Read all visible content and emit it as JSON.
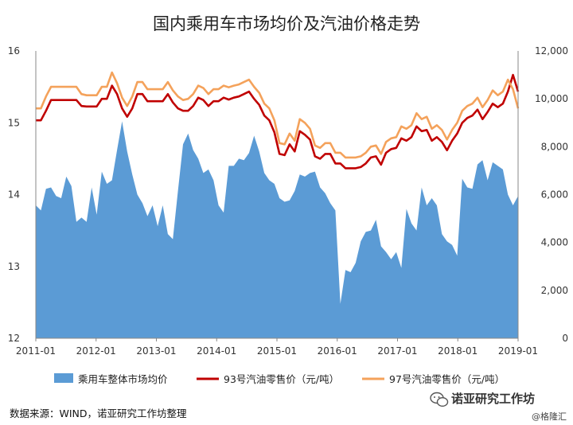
{
  "chart_data": {
    "type": "area",
    "title": "国内乘用车市场均价及汽油价格走势",
    "x_ticks": [
      "2011-01",
      "2012-01",
      "2013-01",
      "2014-01",
      "2015-01",
      "2016-01",
      "2017-01",
      "2018-01",
      "2019-01"
    ],
    "y_left": {
      "min": 12,
      "max": 16,
      "ticks": [
        "12",
        "13",
        "14",
        "15",
        "16"
      ]
    },
    "y_right": {
      "min": 0,
      "max": 12000,
      "ticks": [
        "0",
        "2,000",
        "4,000",
        "6,000",
        "8,000",
        "10,000",
        "12,000"
      ]
    },
    "x_range": [
      "2011-01",
      "2019-01"
    ],
    "series": [
      {
        "name": "乘用车整体市场均价",
        "type": "area",
        "axis": "left",
        "color": "#5b9bd5",
        "values": [
          13.85,
          13.78,
          14.08,
          14.1,
          13.98,
          13.95,
          14.25,
          14.12,
          13.62,
          13.68,
          13.62,
          14.1,
          13.72,
          14.32,
          14.15,
          14.2,
          14.62,
          15.02,
          14.6,
          14.28,
          14.0,
          13.88,
          13.7,
          13.85,
          13.56,
          13.85,
          13.45,
          13.38,
          14.05,
          14.7,
          14.85,
          14.62,
          14.5,
          14.3,
          14.35,
          14.2,
          13.85,
          13.75,
          14.4,
          14.4,
          14.5,
          14.48,
          14.58,
          14.82,
          14.6,
          14.3,
          14.2,
          14.15,
          13.95,
          13.9,
          13.92,
          14.05,
          14.28,
          14.25,
          14.3,
          14.32,
          14.1,
          14.02,
          13.88,
          13.78,
          12.48,
          12.95,
          12.92,
          13.05,
          13.35,
          13.48,
          13.5,
          13.65,
          13.28,
          13.2,
          13.1,
          13.2,
          12.98,
          13.8,
          13.6,
          13.5,
          14.1,
          13.85,
          13.95,
          13.85,
          13.45,
          13.35,
          13.3,
          13.15,
          14.22,
          14.1,
          14.08,
          14.42,
          14.48,
          14.2,
          14.45,
          14.4,
          14.35,
          14.0,
          13.85,
          13.98
        ]
      },
      {
        "name": "93号汽油零售价（元/吨）",
        "type": "line",
        "axis": "right",
        "color": "#c00000",
        "values": [
          9100,
          9100,
          9500,
          9950,
          9950,
          9950,
          9950,
          9950,
          9950,
          9700,
          9680,
          9680,
          9680,
          10000,
          10000,
          10550,
          10200,
          9600,
          9250,
          9600,
          10200,
          10200,
          9900,
          9900,
          9900,
          9900,
          10200,
          9850,
          9600,
          9500,
          9500,
          9700,
          10050,
          9950,
          9700,
          9900,
          9900,
          10050,
          9970,
          10050,
          10100,
          10200,
          10300,
          10000,
          9750,
          9300,
          9100,
          8600,
          7700,
          7650,
          8100,
          7800,
          8650,
          8500,
          8300,
          7600,
          7500,
          7700,
          7700,
          7300,
          7300,
          7100,
          7100,
          7100,
          7150,
          7300,
          7550,
          7600,
          7250,
          7750,
          7900,
          7950,
          8350,
          8250,
          8400,
          8850,
          8650,
          8700,
          8250,
          8400,
          8200,
          7850,
          8250,
          8550,
          9000,
          9200,
          9300,
          9550,
          9150,
          9450,
          9800,
          9650,
          9800,
          10300,
          11000,
          10300
        ]
      },
      {
        "name": "97号汽油零售价（元/吨）",
        "type": "line",
        "axis": "right",
        "color": "#f4a25b",
        "values": [
          9600,
          9600,
          10100,
          10500,
          10500,
          10500,
          10500,
          10500,
          10500,
          10200,
          10150,
          10150,
          10150,
          10500,
          10500,
          11100,
          10650,
          10050,
          9700,
          10100,
          10700,
          10700,
          10400,
          10400,
          10400,
          10400,
          10700,
          10350,
          10100,
          9950,
          10000,
          10200,
          10550,
          10450,
          10200,
          10400,
          10400,
          10550,
          10480,
          10550,
          10600,
          10700,
          10800,
          10500,
          10250,
          9800,
          9600,
          9100,
          8150,
          8100,
          8550,
          8250,
          9150,
          9000,
          8750,
          8050,
          7950,
          8150,
          8150,
          7750,
          7750,
          7550,
          7550,
          7550,
          7600,
          7750,
          8000,
          8050,
          7700,
          8200,
          8350,
          8400,
          8850,
          8750,
          8900,
          9400,
          9150,
          9250,
          8750,
          8900,
          8700,
          8300,
          8700,
          9000,
          9500,
          9700,
          9800,
          10050,
          9650,
          9950,
          10350,
          10150,
          10300,
          10800,
          10400,
          9600
        ]
      }
    ],
    "legend_position": "bottom",
    "grid": false,
    "source": "数据来源：WIND，诺亚研究工作坊整理",
    "watermark_main": "诺亚研究工作坊",
    "watermark_sub": "@格隆汇",
    "watermark_icon": "wechat-icon"
  }
}
